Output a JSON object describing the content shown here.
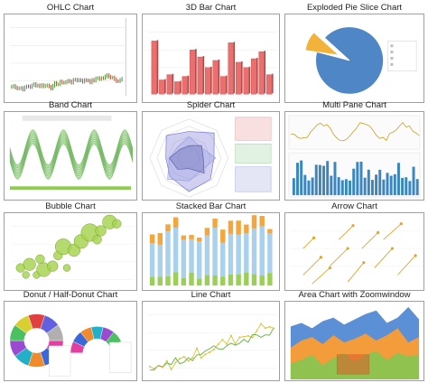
{
  "gallery": {
    "items": [
      {
        "id": "ohlc",
        "title": "OHLC Chart"
      },
      {
        "id": "bar3d",
        "title": "3D Bar Chart"
      },
      {
        "id": "pie",
        "title": "Exploded Pie Slice Chart"
      },
      {
        "id": "band",
        "title": "Band Chart"
      },
      {
        "id": "spider",
        "title": "Spider Chart"
      },
      {
        "id": "multipane",
        "title": "Multi Pane Chart"
      },
      {
        "id": "bubble",
        "title": "Bubble Chart"
      },
      {
        "id": "stacked",
        "title": "Stacked Bar Chart"
      },
      {
        "id": "arrow",
        "title": "Arrow Chart"
      },
      {
        "id": "donut",
        "title": "Donut / Half-Donut Chart"
      },
      {
        "id": "line",
        "title": "Line Chart"
      },
      {
        "id": "area",
        "title": "Area Chart with Zoomwindow"
      }
    ]
  },
  "colors": {
    "bar": "#e8706e",
    "pie": "#4f86c6",
    "pie_exploded": "#f3b23a",
    "band": "#59a84a",
    "bubble": "#a8d455",
    "stacked_blue": "#a9d1ec",
    "stacked_orange": "#f3a63b",
    "stacked_green": "#9ccf5a",
    "area_blue": "#5b8fd6",
    "area_orange": "#f39c3b",
    "area_green": "#8fc24f"
  }
}
